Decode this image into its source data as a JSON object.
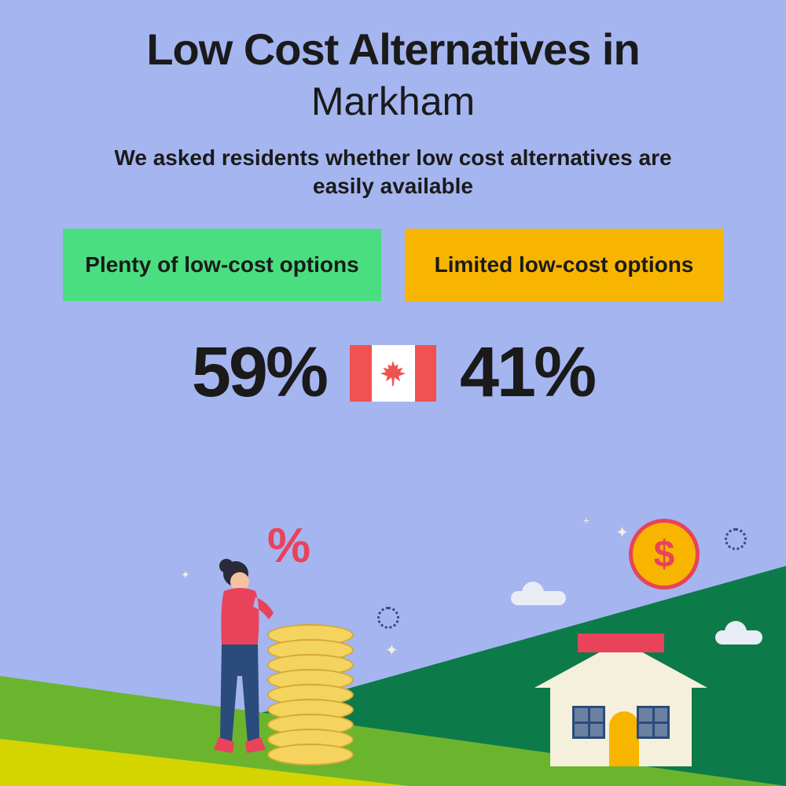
{
  "background_color": "#a5b5f0",
  "title": {
    "line1": "Low Cost Alternatives in",
    "line2": "Markham",
    "color": "#1a1a1a",
    "line1_fontsize": 56,
    "line1_weight": 900,
    "line2_fontsize": 50,
    "line2_weight": 400
  },
  "subtitle": {
    "text": "We asked residents whether low cost alternatives are easily available",
    "color": "#1a1a1a",
    "fontsize": 28,
    "weight": 700
  },
  "options": [
    {
      "label": "Plenty of low-cost options",
      "background_color": "#4ade80",
      "text_color": "#1a1a1a"
    },
    {
      "label": "Limited low-cost options",
      "background_color": "#f7b500",
      "text_color": "#1a1a1a"
    }
  ],
  "stats": {
    "left_value": "59%",
    "right_value": "41%",
    "color": "#1a1a1a",
    "fontsize": 90,
    "weight": 900
  },
  "flag": {
    "red": "#f05252",
    "white": "#ffffff",
    "width": 110,
    "height": 72
  },
  "illustration": {
    "hill_dark_color": "#0d7a4a",
    "hill_light_color": "#6bb52e",
    "hill_yellow_color": "#d4d400",
    "percent_color": "#e8435a",
    "coin_fill": "#f4d35e",
    "coin_border": "#d4a935",
    "coin_count": 9,
    "person": {
      "top_color": "#e8435a",
      "bottom_color": "#2a4b7c",
      "head_color": "#f4c2a1",
      "hair_color": "#2a2a3a"
    },
    "house": {
      "body_color": "#f5f0dc",
      "roof_border_color": "#e8435a",
      "roof_top_color": "#e8435a",
      "door_color": "#f7b500",
      "window_bg": "#2a4b7c"
    },
    "dollar_coin": {
      "bg_color": "#f7b500",
      "text_color": "#e8435a",
      "symbol": "$"
    },
    "cloud_color": "#e8ecf5",
    "sparkle_color": "#f5f0dc",
    "dotted_color": "#2a4b7c"
  }
}
